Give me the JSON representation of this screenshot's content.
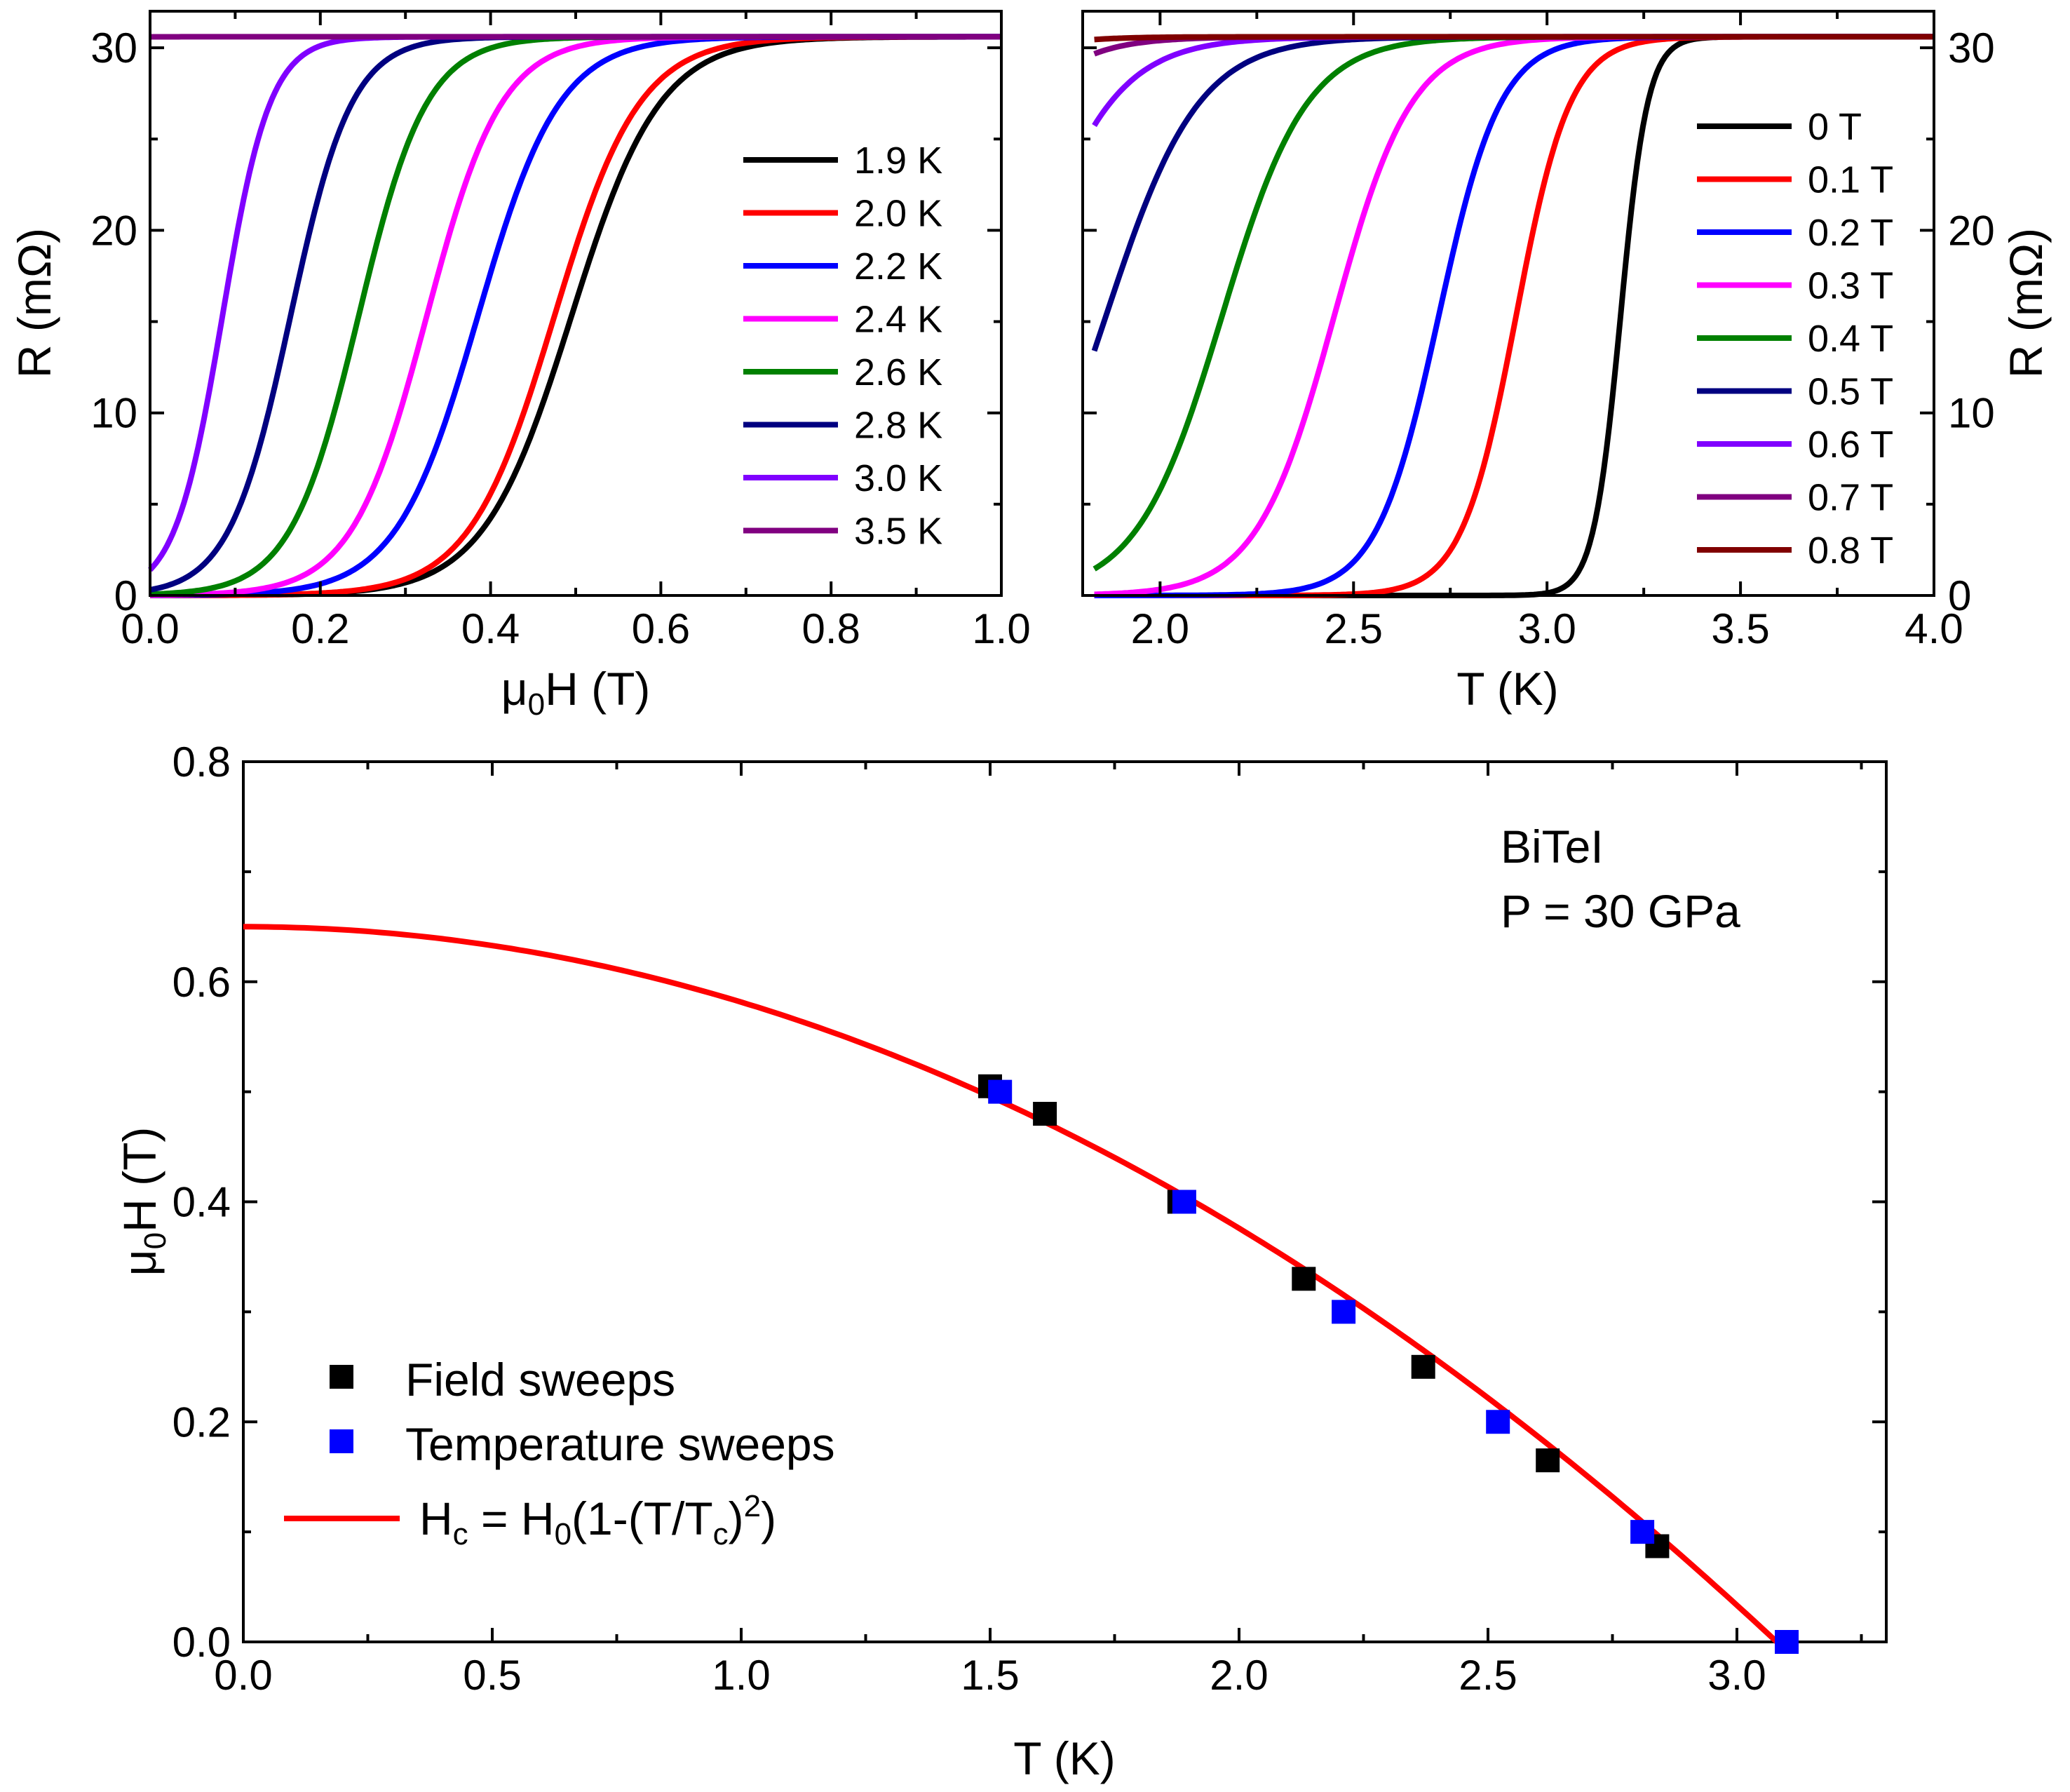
{
  "chart_data": [
    {
      "id": "panel-a",
      "type": "line",
      "title": "",
      "xlabel": "μ0H (T)",
      "ylabel": "R (mΩ)",
      "xlim": [
        0.0,
        1.0
      ],
      "ylim": [
        0,
        32
      ],
      "xticks": [
        "0.0",
        "0.2",
        "0.4",
        "0.6",
        "0.8",
        "1.0"
      ],
      "yticks": [
        "0",
        "10",
        "20",
        "30"
      ],
      "legend_position": "right",
      "series": [
        {
          "name": "1.9 K",
          "color": "#000000",
          "transition": {
            "center": 0.495,
            "width": 0.052,
            "rmax": 30.6
          }
        },
        {
          "name": "2.0 K",
          "color": "#ff0000",
          "transition": {
            "center": 0.475,
            "width": 0.05,
            "rmax": 30.6
          }
        },
        {
          "name": "2.2 K",
          "color": "#0000ff",
          "transition": {
            "center": 0.385,
            "width": 0.048,
            "rmax": 30.6
          }
        },
        {
          "name": "2.4 K",
          "color": "#ff00ff",
          "transition": {
            "center": 0.325,
            "width": 0.044,
            "rmax": 30.6
          }
        },
        {
          "name": "2.6 K",
          "color": "#008000",
          "transition": {
            "center": 0.245,
            "width": 0.04,
            "rmax": 30.6
          }
        },
        {
          "name": "2.8 K",
          "color": "#000080",
          "transition": {
            "center": 0.165,
            "width": 0.036,
            "rmax": 30.6
          }
        },
        {
          "name": "3.0 K",
          "color": "#8000ff",
          "transition": {
            "center": 0.085,
            "width": 0.028,
            "rmax": 30.6
          }
        },
        {
          "name": "3.5 K",
          "color": "#800080",
          "transition": {
            "center": -0.2,
            "width": 0.02,
            "rmax": 30.6
          }
        }
      ]
    },
    {
      "id": "panel-b",
      "type": "line",
      "title": "",
      "xlabel": "T (K)",
      "ylabel": "R (mΩ)",
      "xlim": [
        1.8,
        4.0
      ],
      "ylim": [
        0,
        32
      ],
      "xticks": [
        "2.0",
        "2.5",
        "3.0",
        "3.5",
        "4.0"
      ],
      "yticks": [
        "0",
        "10",
        "20",
        "30"
      ],
      "y_axis_side": "right",
      "legend_position": "right",
      "series": [
        {
          "name": "0 T",
          "color": "#000000",
          "transition": {
            "center": 3.19,
            "width": 0.035,
            "rmax": 30.6
          }
        },
        {
          "name": "0.1 T",
          "color": "#ff0000",
          "transition": {
            "center": 2.92,
            "width": 0.07,
            "rmax": 30.6
          }
        },
        {
          "name": "0.2 T",
          "color": "#0000ff",
          "transition": {
            "center": 2.72,
            "width": 0.08,
            "rmax": 30.6
          }
        },
        {
          "name": "0.3 T",
          "color": "#ff00ff",
          "transition": {
            "center": 2.45,
            "width": 0.1,
            "rmax": 30.6
          }
        },
        {
          "name": "0.4 T",
          "color": "#008000",
          "transition": {
            "center": 2.16,
            "width": 0.11,
            "rmax": 30.6
          }
        },
        {
          "name": "0.5 T",
          "color": "#000080",
          "transition": {
            "center": 1.86,
            "width": 0.12,
            "rmax": 30.6
          }
        },
        {
          "name": "0.6 T",
          "color": "#8000ff",
          "transition": {
            "center": 1.63,
            "width": 0.12,
            "rmax": 30.6
          }
        },
        {
          "name": "0.7 T",
          "color": "#800080",
          "transition": {
            "center": 1.45,
            "width": 0.11,
            "rmax": 30.6
          }
        },
        {
          "name": "0.8 T",
          "color": "#800000",
          "transition": {
            "center": 1.3,
            "width": 0.1,
            "rmax": 30.6
          }
        }
      ]
    },
    {
      "id": "panel-c",
      "type": "scatter",
      "title": "",
      "xlabel": "T (K)",
      "ylabel": "μ0H (T)",
      "xlim": [
        0.0,
        3.3
      ],
      "ylim": [
        0.0,
        0.8
      ],
      "xticks": [
        "0.0",
        "0.5",
        "1.0",
        "1.5",
        "2.0",
        "2.5",
        "3.0"
      ],
      "yticks": [
        "0.0",
        "0.2",
        "0.4",
        "0.6",
        "0.8"
      ],
      "annotations": [
        "BiTeI",
        "P = 30 GPa"
      ],
      "legend_position": "bottom-left",
      "series": [
        {
          "name": "Field sweeps",
          "color": "#000000",
          "marker": "square",
          "points": [
            [
              1.5,
              0.505
            ],
            [
              1.61,
              0.48
            ],
            [
              1.88,
              0.4
            ],
            [
              2.13,
              0.33
            ],
            [
              2.37,
              0.25
            ],
            [
              2.62,
              0.165
            ],
            [
              2.84,
              0.087
            ]
          ]
        },
        {
          "name": "Temperature sweeps",
          "color": "#0000ff",
          "marker": "square",
          "points": [
            [
              1.52,
              0.5
            ],
            [
              1.89,
              0.4
            ],
            [
              2.21,
              0.3
            ],
            [
              2.52,
              0.2
            ],
            [
              2.81,
              0.1
            ],
            [
              3.1,
              0.0
            ]
          ]
        },
        {
          "name": "Hc = H0(1-(T/Tc)2)",
          "color": "#ff0000",
          "type": "line",
          "fit": {
            "H0": 0.65,
            "Tc": 3.08
          }
        }
      ],
      "fit_legend": {
        "H": "H",
        "c": "c",
        "eq": " = H",
        "zero": "0",
        "open": "(1-(T/T",
        "c2": "c",
        "close": ")",
        "sq": "2",
        "tail": ")"
      }
    }
  ],
  "axis_title_parts": {
    "mu": "μ",
    "sub0": "0",
    "H": "H (T)",
    "mu2": "μ",
    "sub0b": "0",
    "H2": "H (T)"
  }
}
